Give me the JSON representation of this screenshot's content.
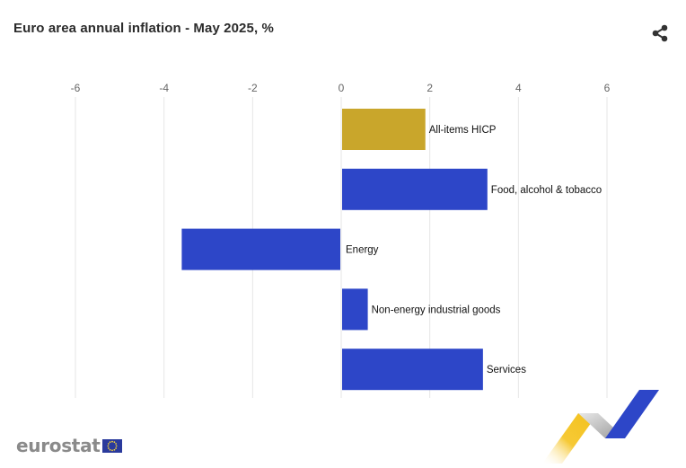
{
  "title": "Euro area annual inflation - May 2025, %",
  "brand": {
    "name": "eurostat"
  },
  "icons": {
    "share": "share-icon"
  },
  "colors": {
    "highlight": "#c9a62b",
    "bar": "#2d46c8",
    "grid": "#e6e6e6",
    "tick": "#666666"
  },
  "chart_data": {
    "type": "bar",
    "orientation": "horizontal",
    "title": "Euro area annual inflation - May 2025, %",
    "categories": [
      "All-items HICP",
      "Food, alcohol & tobacco",
      "Energy",
      "Non-energy industrial goods",
      "Services"
    ],
    "values": [
      1.9,
      3.3,
      -3.6,
      0.6,
      3.2
    ],
    "highlight_index": 0,
    "xlim": [
      -6,
      6
    ],
    "xticks": [
      "-6",
      "-4",
      "-2",
      "0",
      "2",
      "4",
      "6"
    ],
    "xtick_values": [
      -6,
      -4,
      -2,
      0,
      2,
      4,
      6
    ],
    "grid": true,
    "xlabel": "",
    "ylabel": ""
  }
}
